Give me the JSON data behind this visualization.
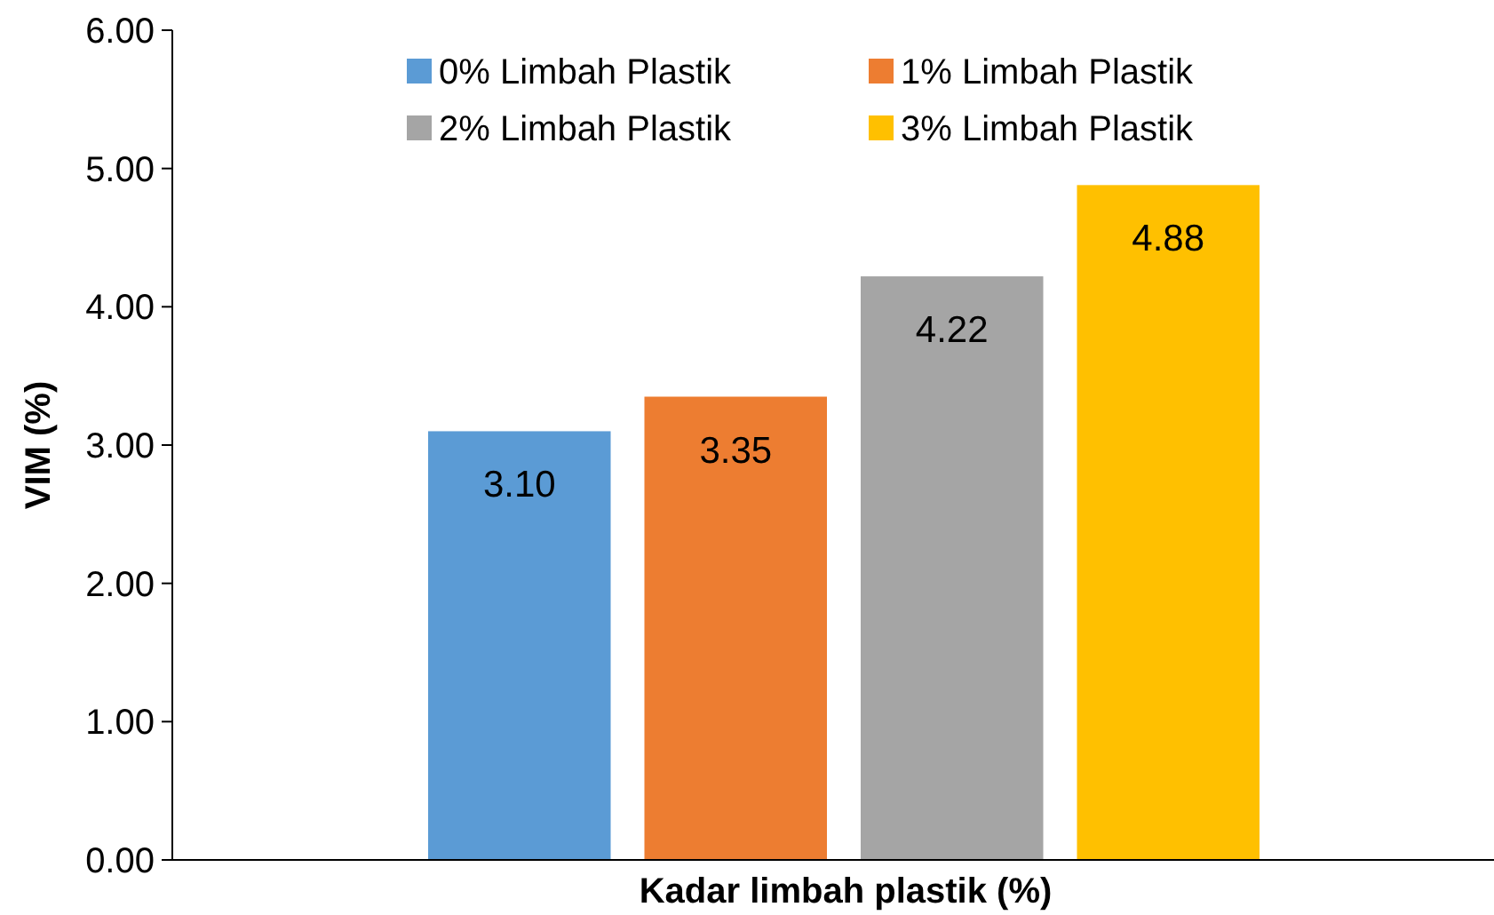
{
  "chart_data": {
    "type": "bar",
    "xlabel": "Kadar limbah plastik (%)",
    "ylabel": "VIM (%)",
    "categories": [
      null
    ],
    "series": [
      {
        "name": "0% Limbah Plastik",
        "color": "#5b9bd5",
        "values": [
          3.1
        ],
        "value_labels": [
          "3.10"
        ]
      },
      {
        "name": "1% Limbah Plastik",
        "color": "#ed7d31",
        "values": [
          3.35
        ],
        "value_labels": [
          "3.35"
        ]
      },
      {
        "name": "2% Limbah Plastik",
        "color": "#a5a5a5",
        "values": [
          4.22
        ],
        "value_labels": [
          "4.22"
        ]
      },
      {
        "name": "3% Limbah Plastik",
        "color": "#ffc000",
        "values": [
          4.88
        ],
        "value_labels": [
          "4.88"
        ]
      }
    ],
    "ylim": [
      0,
      6
    ],
    "yticks": [
      {
        "value": 0,
        "label": "0.00"
      },
      {
        "value": 1,
        "label": "1.00"
      },
      {
        "value": 2,
        "label": "2.00"
      },
      {
        "value": 3,
        "label": "3.00"
      },
      {
        "value": 4,
        "label": "4.00"
      },
      {
        "value": 5,
        "label": "5.00"
      },
      {
        "value": 6,
        "label": "6.00"
      }
    ],
    "grid": false,
    "legend": "top"
  }
}
